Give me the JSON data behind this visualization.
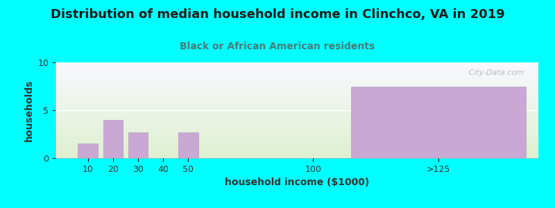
{
  "title": "Distribution of median household income in Clinchco, VA in 2019",
  "subtitle": "Black or African American residents",
  "xlabel": "household income ($1000)",
  "ylabel": "households",
  "background_color": "#00FFFF",
  "plot_bg_color_top": "#f8f8ff",
  "plot_bg_color_bottom": "#dff0d0",
  "bar_color": "#c9a8d4",
  "bar_edge_color": "#b898c4",
  "title_color": "#1a1a1a",
  "subtitle_color": "#4a7a7a",
  "bar_positions": [
    10,
    20,
    30,
    40,
    50,
    100,
    150
  ],
  "bar_widths": [
    8,
    8,
    8,
    8,
    8,
    8,
    70
  ],
  "values": [
    1.5,
    4.0,
    2.7,
    0.0,
    2.7,
    0.0,
    7.5
  ],
  "tick_positions": [
    10,
    20,
    30,
    40,
    50,
    100,
    150
  ],
  "tick_labels": [
    "10",
    "20",
    "30",
    "40",
    "50",
    "100",
    ">125"
  ],
  "xlim": [
    -3,
    190
  ],
  "ylim": [
    0,
    10
  ],
  "yticks": [
    0,
    5,
    10
  ],
  "watermark": "   City-Data.com",
  "title_fontsize": 13,
  "subtitle_fontsize": 10,
  "axis_label_fontsize": 10,
  "tick_fontsize": 9
}
